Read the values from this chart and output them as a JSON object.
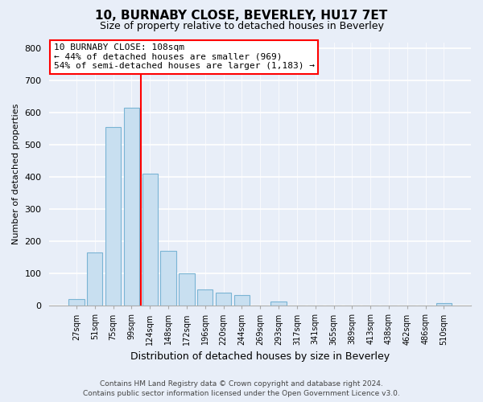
{
  "title": "10, BURNABY CLOSE, BEVERLEY, HU17 7ET",
  "subtitle": "Size of property relative to detached houses in Beverley",
  "xlabel": "Distribution of detached houses by size in Beverley",
  "ylabel": "Number of detached properties",
  "bar_labels": [
    "27sqm",
    "51sqm",
    "75sqm",
    "99sqm",
    "124sqm",
    "148sqm",
    "172sqm",
    "196sqm",
    "220sqm",
    "244sqm",
    "269sqm",
    "293sqm",
    "317sqm",
    "341sqm",
    "365sqm",
    "389sqm",
    "413sqm",
    "438sqm",
    "462sqm",
    "486sqm",
    "510sqm"
  ],
  "bar_values": [
    20,
    165,
    555,
    615,
    410,
    170,
    100,
    50,
    40,
    33,
    0,
    12,
    0,
    0,
    0,
    0,
    0,
    0,
    0,
    0,
    8
  ],
  "bar_color": "#c8dff0",
  "bar_edge_color": "#7ab4d4",
  "vline_x": 3.5,
  "vline_color": "red",
  "annotation_title": "10 BURNABY CLOSE: 108sqm",
  "annotation_line1": "← 44% of detached houses are smaller (969)",
  "annotation_line2": "54% of semi-detached houses are larger (1,183) →",
  "annotation_box_color": "white",
  "annotation_box_edge": "red",
  "ylim": [
    0,
    820
  ],
  "yticks": [
    0,
    100,
    200,
    300,
    400,
    500,
    600,
    700,
    800
  ],
  "footer_line1": "Contains HM Land Registry data © Crown copyright and database right 2024.",
  "footer_line2": "Contains public sector information licensed under the Open Government Licence v3.0.",
  "bg_color": "#e8eef8",
  "plot_bg_color": "#e8eef8",
  "title_fontsize": 11,
  "subtitle_fontsize": 9,
  "xlabel_fontsize": 9,
  "ylabel_fontsize": 8,
  "tick_fontsize": 8,
  "xtick_fontsize": 7,
  "footer_fontsize": 6.5,
  "annot_fontsize": 8
}
